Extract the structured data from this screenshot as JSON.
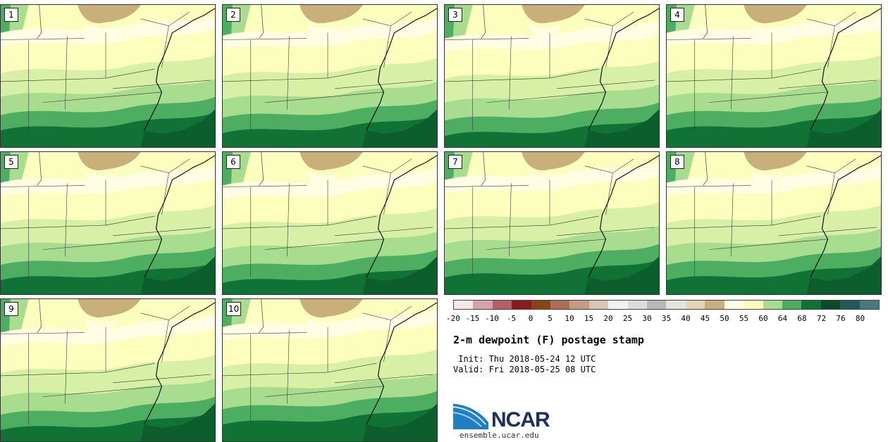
{
  "panels": [
    {
      "label": "1"
    },
    {
      "label": "2"
    },
    {
      "label": "3"
    },
    {
      "label": "4"
    },
    {
      "label": "5"
    },
    {
      "label": "6"
    },
    {
      "label": "7"
    },
    {
      "label": "8"
    },
    {
      "label": "9"
    },
    {
      "label": "10"
    }
  ],
  "legend": {
    "colors": [
      "#f7e8ea",
      "#d6a3ab",
      "#b4606a",
      "#8a1a20",
      "#8a4416",
      "#ab6f52",
      "#c59a86",
      "#dbc4b6",
      "#f2f2f4",
      "#dcdcdc",
      "#b9b9b9",
      "#e4e4de",
      "#e3d6b5",
      "#c9b07a",
      "#fffde4",
      "#fcfebd",
      "#a8dc8e",
      "#4dae62",
      "#107335",
      "#0a4a2a",
      "#1e5b58",
      "#4a7a7b"
    ],
    "ticks": [
      "-20",
      "-15",
      "-10",
      "-5",
      "0",
      "5",
      "10",
      "15",
      "20",
      "25",
      "30",
      "35",
      "40",
      "45",
      "50",
      "55",
      "60",
      "64",
      "68",
      "72",
      "76",
      "80"
    ]
  },
  "title": "2-m dewpoint (F) postage stamp",
  "init": " Init: Thu 2018-05-24 12 UTC",
  "valid": "Valid: Fri 2018-05-25 08 UTC",
  "logo_text": "NCAR",
  "site": "ensemble.ucar.edu"
}
